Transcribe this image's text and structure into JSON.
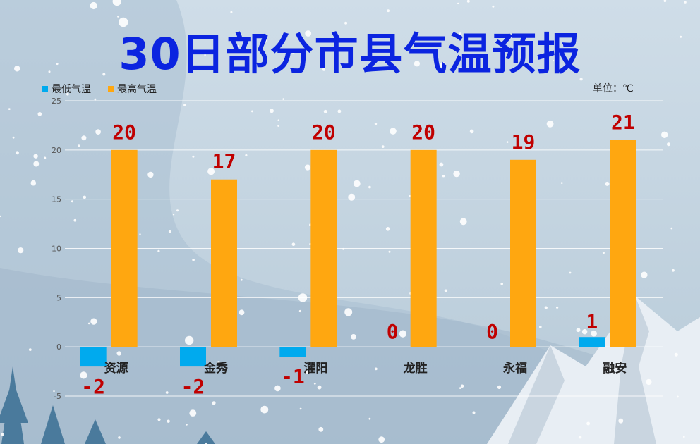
{
  "title": "30日部分市县气温预报",
  "unit_label": "单位：℃",
  "colors": {
    "low": "#00aaee",
    "high": "#ffa710",
    "label": "#c00000",
    "title": "#0b24e0"
  },
  "chart_data": {
    "type": "bar",
    "categories": [
      "资源",
      "金秀",
      "灌阳",
      "龙胜",
      "永福",
      "融安"
    ],
    "series": [
      {
        "name": "最低气温",
        "values": [
          -2,
          -2,
          -1,
          0,
          0,
          1
        ]
      },
      {
        "name": "最高气温",
        "values": [
          20,
          17,
          20,
          20,
          19,
          21
        ]
      }
    ],
    "ylim": [
      -5,
      25
    ],
    "yticks": [
      -5,
      0,
      5,
      10,
      15,
      20,
      25
    ],
    "grid": true,
    "legend_position": "top-left"
  }
}
